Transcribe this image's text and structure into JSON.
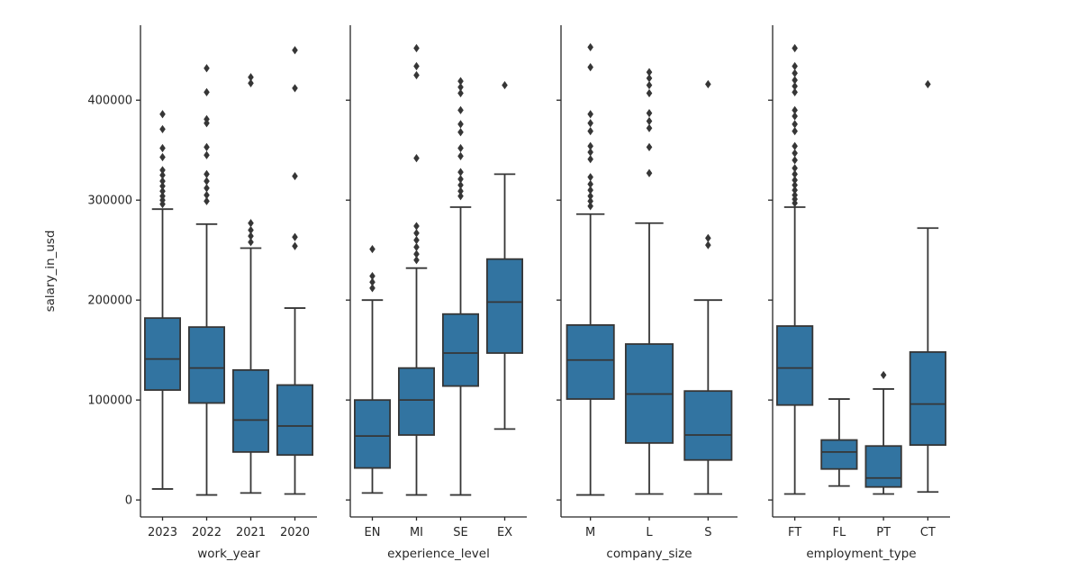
{
  "figure": {
    "background": "#ffffff",
    "box_fill_color": "#3274a1",
    "line_color": "#363636",
    "spine_color": "#262626",
    "text_color": "#262626",
    "ylabel": "salary_in_usd"
  },
  "chart_data": [
    {
      "type": "box",
      "title": "",
      "xlabel": "work_year",
      "ylabel": "salary_in_usd",
      "categories": [
        "2023",
        "2022",
        "2021",
        "2020"
      ],
      "ylim": [
        -17000,
        475000
      ],
      "yticks": [
        0,
        100000,
        200000,
        300000,
        400000
      ],
      "show_ytick_labels": true,
      "grid": false,
      "boxes": [
        {
          "category": "2023",
          "whisker_low": 11000,
          "q1": 110000,
          "median": 141000,
          "q3": 182000,
          "whisker_high": 291000,
          "outliers": [
            296000,
            300000,
            304000,
            309000,
            314000,
            319000,
            325000,
            330000,
            343000,
            352000,
            371000,
            386000
          ]
        },
        {
          "category": "2022",
          "whisker_low": 5000,
          "q1": 97000,
          "median": 132000,
          "q3": 173000,
          "whisker_high": 276000,
          "outliers": [
            299000,
            305000,
            312000,
            319000,
            326000,
            345000,
            353000,
            377000,
            381000,
            408000,
            432000
          ]
        },
        {
          "category": "2021",
          "whisker_low": 7000,
          "q1": 48000,
          "median": 80000,
          "q3": 130000,
          "whisker_high": 252000,
          "outliers": [
            258000,
            264000,
            270000,
            277000,
            417000,
            423000
          ]
        },
        {
          "category": "2020",
          "whisker_low": 6000,
          "q1": 45000,
          "median": 74000,
          "q3": 115000,
          "whisker_high": 192000,
          "outliers": [
            254000,
            263000,
            324000,
            412000,
            450000
          ]
        }
      ]
    },
    {
      "type": "box",
      "title": "",
      "xlabel": "experience_level",
      "categories": [
        "EN",
        "MI",
        "SE",
        "EX"
      ],
      "ylim": [
        -17000,
        475000
      ],
      "yticks": [
        0,
        100000,
        200000,
        300000,
        400000
      ],
      "show_ytick_labels": false,
      "grid": false,
      "boxes": [
        {
          "category": "EN",
          "whisker_low": 7000,
          "q1": 32000,
          "median": 64000,
          "q3": 100000,
          "whisker_high": 200000,
          "outliers": [
            212000,
            218000,
            224000,
            251000
          ]
        },
        {
          "category": "MI",
          "whisker_low": 5000,
          "q1": 65000,
          "median": 100000,
          "q3": 132000,
          "whisker_high": 232000,
          "outliers": [
            240000,
            246000,
            253000,
            260000,
            267000,
            274000,
            342000,
            425000,
            434000,
            452000
          ]
        },
        {
          "category": "SE",
          "whisker_low": 5000,
          "q1": 114000,
          "median": 147000,
          "q3": 186000,
          "whisker_high": 293000,
          "outliers": [
            304000,
            309000,
            315000,
            321000,
            328000,
            344000,
            352000,
            368000,
            376000,
            390000,
            407000,
            413000,
            419000
          ]
        },
        {
          "category": "EX",
          "whisker_low": 71000,
          "q1": 147000,
          "median": 198000,
          "q3": 241000,
          "whisker_high": 326000,
          "outliers": [
            415000
          ]
        }
      ]
    },
    {
      "type": "box",
      "title": "",
      "xlabel": "company_size",
      "categories": [
        "M",
        "L",
        "S"
      ],
      "ylim": [
        -17000,
        475000
      ],
      "yticks": [
        0,
        100000,
        200000,
        300000,
        400000
      ],
      "show_ytick_labels": false,
      "grid": false,
      "boxes": [
        {
          "category": "M",
          "whisker_low": 5000,
          "q1": 101000,
          "median": 140000,
          "q3": 175000,
          "whisker_high": 286000,
          "outliers": [
            294000,
            299000,
            304000,
            310000,
            316000,
            323000,
            341000,
            348000,
            354000,
            369000,
            377000,
            386000,
            433000,
            453000
          ]
        },
        {
          "category": "L",
          "whisker_low": 6000,
          "q1": 57000,
          "median": 106000,
          "q3": 156000,
          "whisker_high": 277000,
          "outliers": [
            327000,
            353000,
            372000,
            379000,
            387000,
            407000,
            415000,
            422000,
            428000
          ]
        },
        {
          "category": "S",
          "whisker_low": 6000,
          "q1": 40000,
          "median": 65000,
          "q3": 109000,
          "whisker_high": 200000,
          "outliers": [
            255000,
            262000,
            416000
          ]
        }
      ]
    },
    {
      "type": "box",
      "title": "",
      "xlabel": "employment_type",
      "categories": [
        "FT",
        "FL",
        "PT",
        "CT"
      ],
      "ylim": [
        -17000,
        475000
      ],
      "yticks": [
        0,
        100000,
        200000,
        300000,
        400000
      ],
      "show_ytick_labels": false,
      "grid": false,
      "boxes": [
        {
          "category": "FT",
          "whisker_low": 6000,
          "q1": 95000,
          "median": 132000,
          "q3": 174000,
          "whisker_high": 293000,
          "outliers": [
            297000,
            301000,
            305000,
            310000,
            315000,
            320000,
            326000,
            332000,
            340000,
            347000,
            354000,
            369000,
            376000,
            384000,
            390000,
            408000,
            414000,
            420000,
            427000,
            434000,
            452000
          ]
        },
        {
          "category": "FL",
          "whisker_low": 14000,
          "q1": 31000,
          "median": 48000,
          "q3": 60000,
          "whisker_high": 101000,
          "outliers": []
        },
        {
          "category": "PT",
          "whisker_low": 6000,
          "q1": 13000,
          "median": 22000,
          "q3": 54000,
          "whisker_high": 111000,
          "outliers": [
            125000
          ]
        },
        {
          "category": "CT",
          "whisker_low": 8000,
          "q1": 55000,
          "median": 96000,
          "q3": 148000,
          "whisker_high": 272000,
          "outliers": [
            416000
          ]
        }
      ]
    }
  ]
}
